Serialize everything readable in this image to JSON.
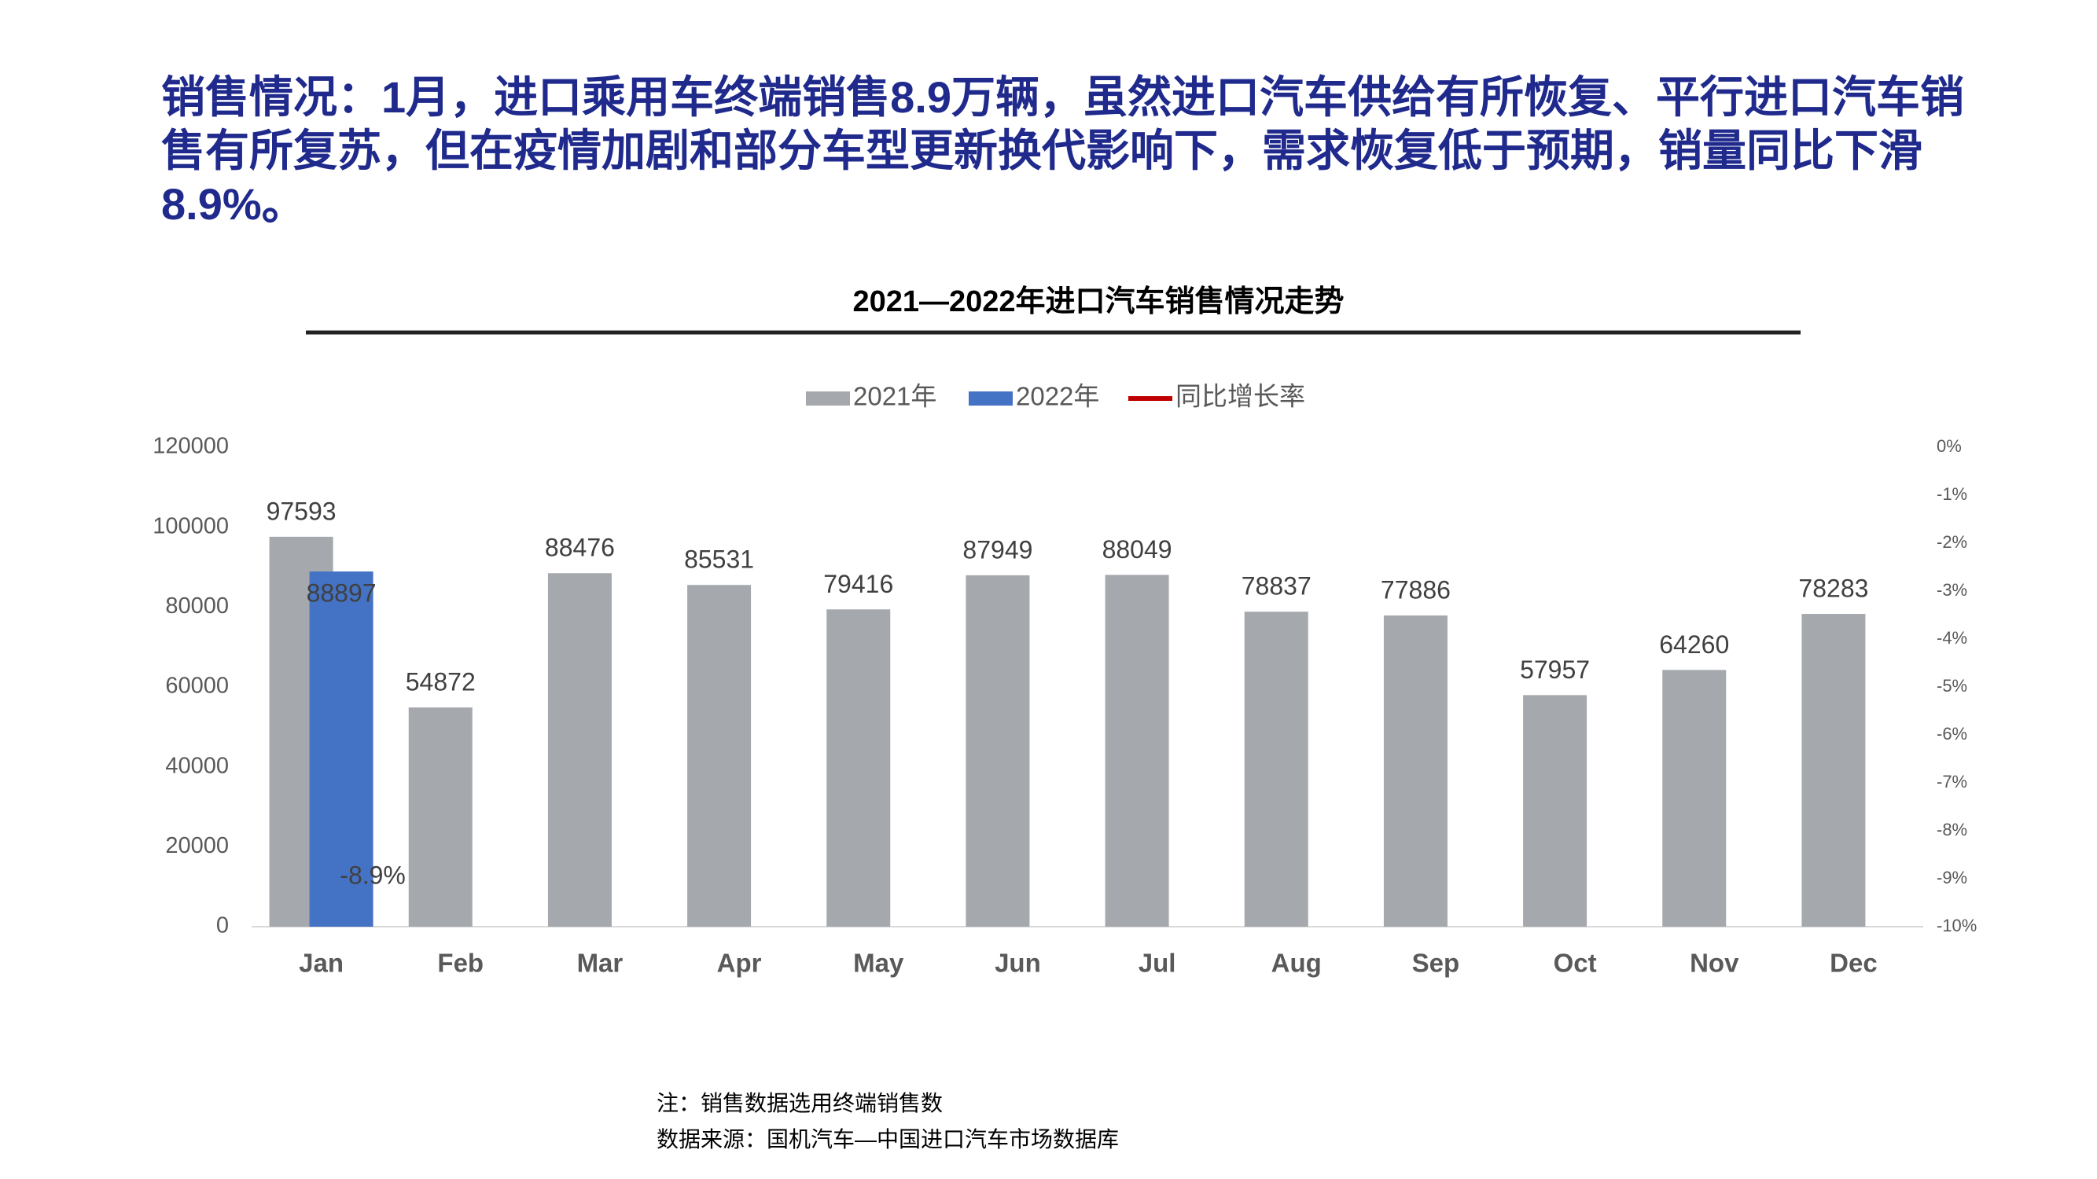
{
  "headline": "销售情况：1月，进口乘用车终端销售8.9万辆，虽然进口汽车供给有所恢复、平行进口汽车销售有所复苏，但在疫情加剧和部分车型更新换代影响下，需求恢复低于预期，销量同比下滑8.9%。",
  "chart_data": {
    "type": "bar",
    "title": "2021—2022年进口汽车销售情况走势",
    "categories": [
      "Jan",
      "Feb",
      "Mar",
      "Apr",
      "May",
      "Jun",
      "Jul",
      "Aug",
      "Sep",
      "Oct",
      "Nov",
      "Dec"
    ],
    "series": [
      {
        "name": "2021年",
        "color": "#a5a8ad",
        "values": [
          97593,
          54872,
          88476,
          85531,
          79416,
          87949,
          88049,
          78837,
          77886,
          57957,
          64260,
          78283
        ]
      },
      {
        "name": "2022年",
        "color": "#4472c4",
        "values": [
          88897,
          null,
          null,
          null,
          null,
          null,
          null,
          null,
          null,
          null,
          null,
          null
        ]
      },
      {
        "name": "同比增长率",
        "type": "line",
        "axis": "y2",
        "color": "#c00000",
        "values": [
          -8.9,
          null,
          null,
          null,
          null,
          null,
          null,
          null,
          null,
          null,
          null,
          null
        ],
        "value_labels": [
          "-8.9%",
          null,
          null,
          null,
          null,
          null,
          null,
          null,
          null,
          null,
          null,
          null
        ]
      }
    ],
    "ylim": [
      0,
      120000
    ],
    "yticks": [
      0,
      20000,
      40000,
      60000,
      80000,
      100000,
      120000
    ],
    "y2lim": [
      -10,
      0
    ],
    "y2ticks": [
      {
        "value": 0,
        "label": "0%"
      },
      {
        "value": -1,
        "label": "-1%"
      },
      {
        "value": -2,
        "label": "-2%"
      },
      {
        "value": -3,
        "label": "-3%"
      },
      {
        "value": -4,
        "label": "-4%"
      },
      {
        "value": -5,
        "label": "-5%"
      },
      {
        "value": -6,
        "label": "-6%"
      },
      {
        "value": -7,
        "label": "-7%"
      },
      {
        "value": -8,
        "label": "-8%"
      },
      {
        "value": -9,
        "label": "-9%"
      },
      {
        "value": -10,
        "label": "-10%"
      }
    ],
    "legend": "top",
    "grid": false
  },
  "notes": [
    "注：销售数据选用终端销售数",
    "数据来源：国机汽车—中国进口汽车市场数据库"
  ]
}
